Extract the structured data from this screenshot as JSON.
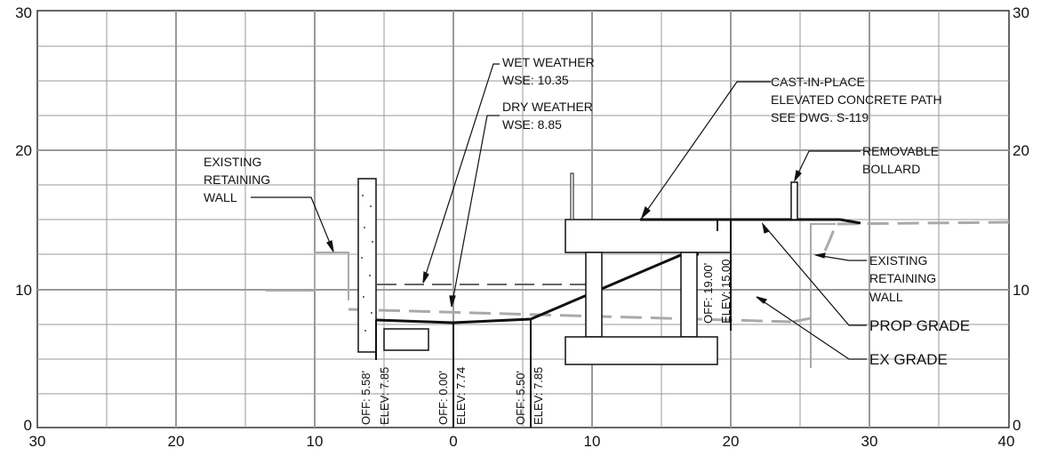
{
  "axes": {
    "x_ticks": [
      "30",
      "20",
      "10",
      "0",
      "10",
      "20",
      "30",
      "40"
    ],
    "y_ticks_left": [
      "30",
      "20",
      "10",
      "0"
    ],
    "y_ticks_right": [
      "30",
      "20",
      "10",
      "0"
    ]
  },
  "callouts": {
    "wet_weather": {
      "line1": "WET WEATHER",
      "line2": "WSE: 10.35"
    },
    "dry_weather": {
      "line1": "DRY WEATHER",
      "line2": "WSE: 8.85"
    },
    "concrete_path": {
      "line1": "CAST-IN-PLACE",
      "line2": "ELEVATED CONCRETE PATH",
      "line3": "SEE DWG. S-119"
    },
    "bollard": {
      "line1": "REMOVABLE",
      "line2": "BOLLARD"
    },
    "existing_wall_left": {
      "line1": "EXISTING",
      "line2": "RETAINING",
      "line3": "WALL"
    },
    "existing_wall_right": {
      "line1": "EXISTING",
      "line2": "RETAINING",
      "line3": "WALL"
    },
    "prop_grade": "PROP GRADE",
    "ex_grade": "EX GRADE"
  },
  "offsets": [
    {
      "off": "OFF: 5.58'",
      "elev": "ELEV: 7.85"
    },
    {
      "off": "OFF: 0.00'",
      "elev": "ELEV: 7.74"
    },
    {
      "off": "OFF: 5.50'",
      "elev": "ELEV: 7.85"
    },
    {
      "off": "OFF: 19.00'",
      "elev": "ELEV: 15.00"
    }
  ]
}
